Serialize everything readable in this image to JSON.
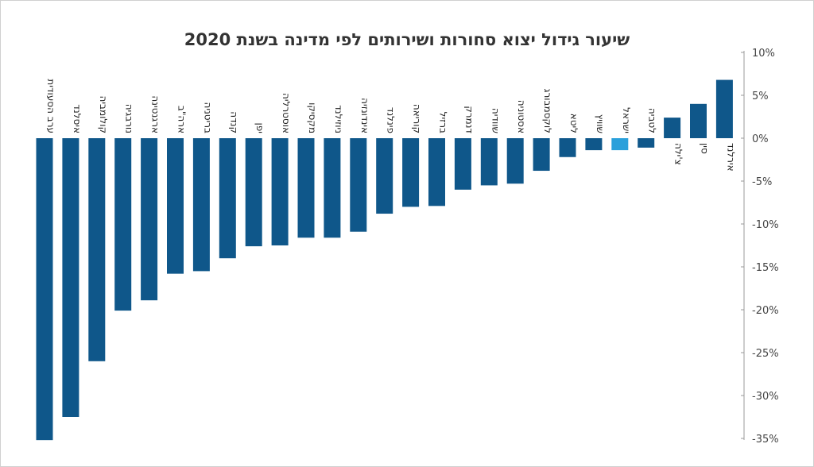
{
  "chart_data": {
    "type": "bar",
    "title": "שיעור גידול יצוא סחורות ושירותים לפי מדינה בשנת 2020",
    "categories": [
      "ערב הסעודית",
      "איסלנד",
      "קולומביה",
      "נורבגיה",
      "ארגנטינה",
      "ארה\"ב",
      "בריטניה",
      "קנדה",
      "יפן",
      "אוסטרליה",
      "מקסיקו",
      "ניוזילנד",
      "אינדונזיה",
      "פינלנד",
      "קוריאה",
      "ברזיל",
      "דנמרק",
      "שוודיה",
      "אסטוניה",
      "לוקסמבורג",
      "ליטא",
      "שוויץ",
      "ישראל",
      "לטביה",
      "צ'ילה",
      "סין",
      "אירלנד"
    ],
    "values": [
      -35.2,
      -32.5,
      -26,
      -20.1,
      -18.9,
      -15.8,
      -15.5,
      -14,
      -12.6,
      -12.5,
      -11.6,
      -11.6,
      -10.9,
      -8.8,
      -8,
      -7.9,
      -6,
      -5.5,
      -5.3,
      -3.8,
      -2.2,
      -1.4,
      -1.4,
      -1.1,
      2.4,
      4,
      6.8
    ],
    "highlight": "ישראל",
    "ylim": [
      -35,
      10
    ],
    "yticks": [
      "10%",
      "5%",
      "0%",
      "-5%",
      "-10%",
      "-15%",
      "-20%",
      "-25%",
      "-30%",
      "-35%"
    ],
    "ytick_values": [
      10,
      5,
      0,
      -5,
      -10,
      -15,
      -20,
      -25,
      -30,
      -35
    ],
    "colors": {
      "bar": "#0f578a",
      "highlight": "#2aa0db",
      "axis": "#999999"
    },
    "xlabel": "",
    "ylabel": "",
    "grid": false,
    "legend": "none"
  }
}
